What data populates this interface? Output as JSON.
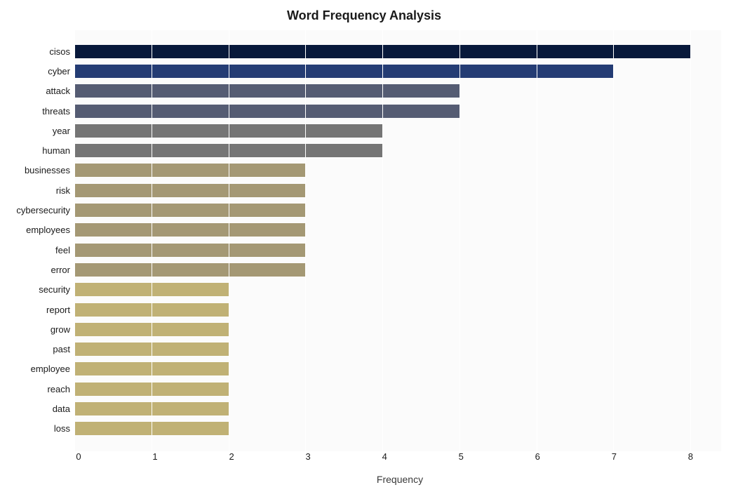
{
  "chart": {
    "title": "Word Frequency Analysis",
    "title_fontsize": 18,
    "title_fontweight": "bold",
    "title_color": "#1a1a1a",
    "xlabel": "Frequency",
    "xlabel_fontsize": 14,
    "xlabel_color": "#3a3a3a",
    "background_color": "#fbfbfb",
    "grid_color": "#ffffff",
    "tick_fontsize": 13,
    "tick_color": "#1a1a1a",
    "xlim": [
      0,
      8.4
    ],
    "xtick_step": 1,
    "bar_height_ratio": 0.67,
    "words": [
      {
        "label": "cisos",
        "value": 8,
        "color": "#08193b"
      },
      {
        "label": "cyber",
        "value": 7,
        "color": "#243c74"
      },
      {
        "label": "attack",
        "value": 5,
        "color": "#555c73"
      },
      {
        "label": "threats",
        "value": 5,
        "color": "#555c73"
      },
      {
        "label": "year",
        "value": 4,
        "color": "#757575"
      },
      {
        "label": "human",
        "value": 4,
        "color": "#757575"
      },
      {
        "label": "businesses",
        "value": 3,
        "color": "#a49874"
      },
      {
        "label": "risk",
        "value": 3,
        "color": "#a49874"
      },
      {
        "label": "cybersecurity",
        "value": 3,
        "color": "#a49874"
      },
      {
        "label": "employees",
        "value": 3,
        "color": "#a49874"
      },
      {
        "label": "feel",
        "value": 3,
        "color": "#a49874"
      },
      {
        "label": "error",
        "value": 3,
        "color": "#a49874"
      },
      {
        "label": "security",
        "value": 2,
        "color": "#c0b175"
      },
      {
        "label": "report",
        "value": 2,
        "color": "#c0b175"
      },
      {
        "label": "grow",
        "value": 2,
        "color": "#c0b175"
      },
      {
        "label": "past",
        "value": 2,
        "color": "#c0b175"
      },
      {
        "label": "employee",
        "value": 2,
        "color": "#c0b175"
      },
      {
        "label": "reach",
        "value": 2,
        "color": "#c0b175"
      },
      {
        "label": "data",
        "value": 2,
        "color": "#c0b175"
      },
      {
        "label": "loss",
        "value": 2,
        "color": "#c0b175"
      }
    ]
  }
}
